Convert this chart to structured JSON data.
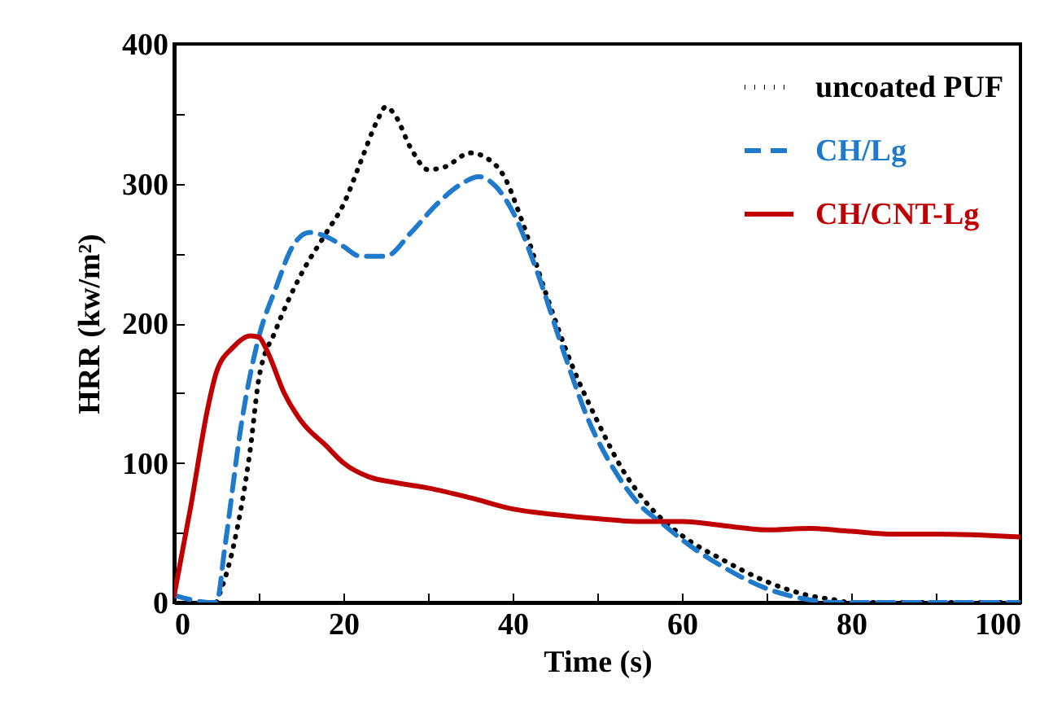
{
  "chart_data": {
    "type": "line",
    "xlabel": "Time (s)",
    "ylabel": "HRR (kw/m²)",
    "xlim": [
      0,
      100
    ],
    "ylim": [
      0,
      400
    ],
    "xticks": [
      0,
      {
        "value": 10,
        "label": null
      },
      20,
      {
        "value": 30,
        "label": null
      },
      40,
      {
        "value": 50,
        "label": null
      },
      60,
      {
        "value": 70,
        "label": null
      },
      80,
      {
        "value": 90,
        "label": null
      },
      100
    ],
    "yticks": [
      0,
      {
        "value": 50,
        "label": null
      },
      100,
      {
        "value": 150,
        "label": null
      },
      200,
      {
        "value": 250,
        "label": null
      },
      300,
      {
        "value": 350,
        "label": null
      },
      400
    ],
    "grid": false,
    "legend": "top right",
    "marker": "none",
    "series": [
      {
        "name": "uncoated PUF",
        "color": "#000000",
        "line_style": "dotted",
        "x": [
          5,
          7,
          9,
          10,
          12,
          15,
          18,
          20,
          22,
          24,
          25,
          26,
          28,
          30,
          32,
          35,
          37,
          39,
          41,
          44,
          47,
          50,
          53,
          56,
          60,
          65,
          70,
          75,
          78,
          80,
          100
        ],
        "values": [
          0,
          40,
          110,
          160,
          195,
          235,
          265,
          285,
          315,
          345,
          355,
          350,
          325,
          310,
          312,
          322,
          318,
          305,
          275,
          220,
          170,
          130,
          95,
          70,
          48,
          30,
          15,
          5,
          2,
          0,
          0
        ]
      },
      {
        "name": "CH/Lg",
        "color": "#1f7acc",
        "line_style": "dashed",
        "x": [
          0,
          2,
          4,
          5,
          6,
          8,
          10,
          12,
          14,
          16,
          18,
          20,
          22,
          25,
          28,
          31,
          34,
          36,
          38,
          40,
          43,
          46,
          49,
          52,
          55,
          58,
          60,
          65,
          70,
          75,
          78,
          100
        ],
        "values": [
          5,
          2,
          0,
          0,
          40,
          130,
          190,
          225,
          255,
          265,
          262,
          255,
          248,
          248,
          265,
          285,
          300,
          305,
          298,
          280,
          235,
          180,
          130,
          95,
          70,
          55,
          45,
          25,
          10,
          2,
          0,
          0
        ]
      },
      {
        "name": "CH/CNT-Lg",
        "color": "#c00000",
        "line_style": "solid",
        "x": [
          0,
          2,
          4,
          5,
          7,
          9,
          10,
          11,
          13,
          15,
          18,
          20,
          23,
          26,
          30,
          35,
          40,
          45,
          50,
          55,
          60,
          65,
          70,
          75,
          80,
          85,
          90,
          100
        ],
        "values": [
          5,
          70,
          140,
          165,
          183,
          191,
          190,
          180,
          150,
          130,
          112,
          100,
          90,
          86,
          82,
          75,
          67,
          63,
          60,
          58,
          58,
          55,
          52,
          53,
          51,
          49,
          49,
          47
        ]
      }
    ]
  }
}
